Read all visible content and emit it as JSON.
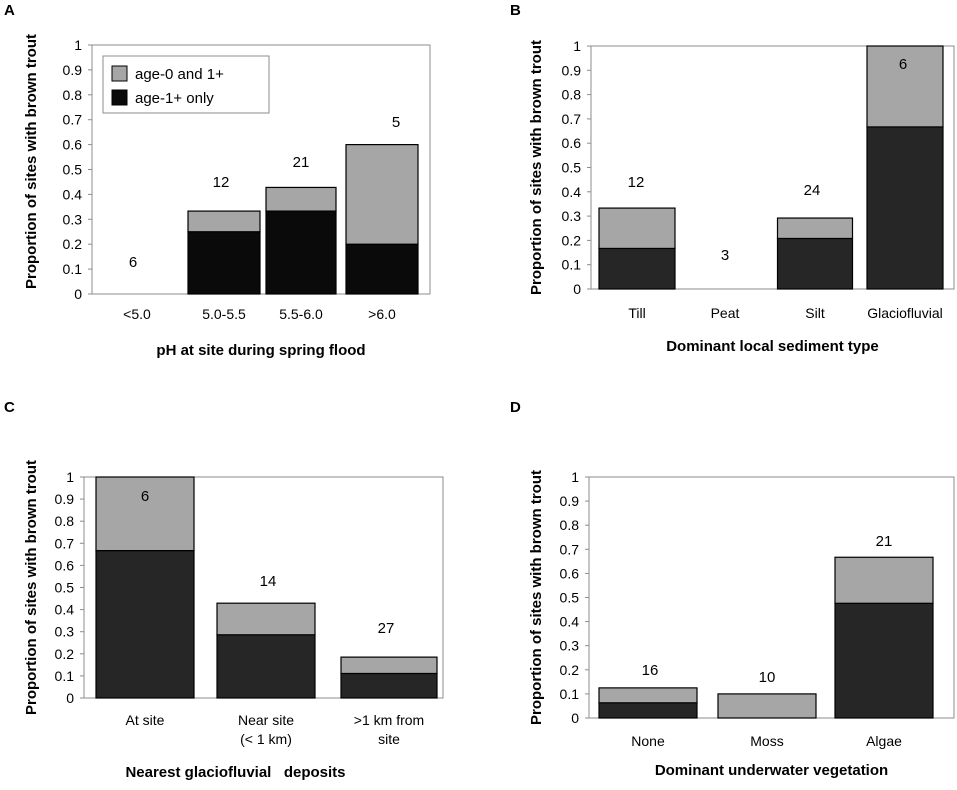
{
  "chart_data": [
    {
      "type": "bar",
      "stacked": true,
      "panel": "A",
      "categories": [
        "<5.0",
        "5.0-5.5",
        "5.5-6.0",
        ">6.0"
      ],
      "series": [
        {
          "name": "age-1+ only",
          "color": "#0a0a0a",
          "values": [
            0,
            0.25,
            0.333,
            0.2
          ]
        },
        {
          "name": "age-0 and 1+",
          "color": "#a6a6a6",
          "values": [
            0,
            0.083,
            0.095,
            0.4
          ]
        }
      ],
      "counts": [
        "6",
        "12",
        "21",
        "5"
      ],
      "xlabel": "pH at site during spring flood",
      "ylabel": "Proportion of sites with brown trout",
      "ylim": [
        0,
        1
      ],
      "yticks": [
        "0",
        "0.1",
        "0.2",
        "0.3",
        "0.4",
        "0.5",
        "0.6",
        "0.7",
        "0.8",
        "0.9",
        "1"
      ],
      "legend": {
        "position": "top-left",
        "entries": [
          "age-0 and 1+",
          "age-1+ only"
        ]
      }
    },
    {
      "type": "bar",
      "stacked": true,
      "panel": "B",
      "categories": [
        "Till",
        "Peat",
        "Silt",
        "Glaciofluvial"
      ],
      "series": [
        {
          "name": "age-1+ only",
          "color": "#262626",
          "values": [
            0.167,
            0,
            0.208,
            0.667
          ]
        },
        {
          "name": "age-0 and 1+",
          "color": "#a6a6a6",
          "values": [
            0.166,
            0,
            0.084,
            0.333
          ]
        }
      ],
      "counts": [
        "12",
        "3",
        "24",
        "6"
      ],
      "xlabel": "Dominant local sediment type",
      "ylabel": "Proportion of sites with brown trout",
      "ylim": [
        0,
        1
      ],
      "yticks": [
        "0",
        "0.1",
        "0.2",
        "0.3",
        "0.4",
        "0.5",
        "0.6",
        "0.7",
        "0.8",
        "0.9",
        "1"
      ]
    },
    {
      "type": "bar",
      "stacked": true,
      "panel": "C",
      "categories": [
        "At site",
        "Near site\n(< 1 km)",
        ">1 km from\nsite"
      ],
      "series": [
        {
          "name": "age-1+ only",
          "color": "#262626",
          "values": [
            0.667,
            0.286,
            0.111
          ]
        },
        {
          "name": "age-0 and 1+",
          "color": "#a6a6a6",
          "values": [
            0.333,
            0.143,
            0.074
          ]
        }
      ],
      "counts": [
        "6",
        "14",
        "27"
      ],
      "xlabel": "Nearest glaciofluvial   deposits",
      "ylabel": "Proportion of sites with brown trout",
      "ylim": [
        0,
        1
      ],
      "yticks": [
        "0",
        "0.1",
        "0.2",
        "0.3",
        "0.4",
        "0.5",
        "0.6",
        "0.7",
        "0.8",
        "0.9",
        "1"
      ]
    },
    {
      "type": "bar",
      "stacked": true,
      "panel": "D",
      "categories": [
        "None",
        "Moss",
        "Algae"
      ],
      "series": [
        {
          "name": "age-1+ only",
          "color": "#262626",
          "values": [
            0.063,
            0,
            0.476
          ]
        },
        {
          "name": "age-0 and 1+",
          "color": "#a6a6a6",
          "values": [
            0.062,
            0.1,
            0.191
          ]
        }
      ],
      "counts": [
        "16",
        "10",
        "21"
      ],
      "xlabel": "Dominant underwater vegetation",
      "ylabel": "Proportion of sites with brown trout",
      "ylim": [
        0,
        1
      ],
      "yticks": [
        "0",
        "0.1",
        "0.2",
        "0.3",
        "0.4",
        "0.5",
        "0.6",
        "0.7",
        "0.8",
        "0.9",
        "1"
      ]
    }
  ]
}
